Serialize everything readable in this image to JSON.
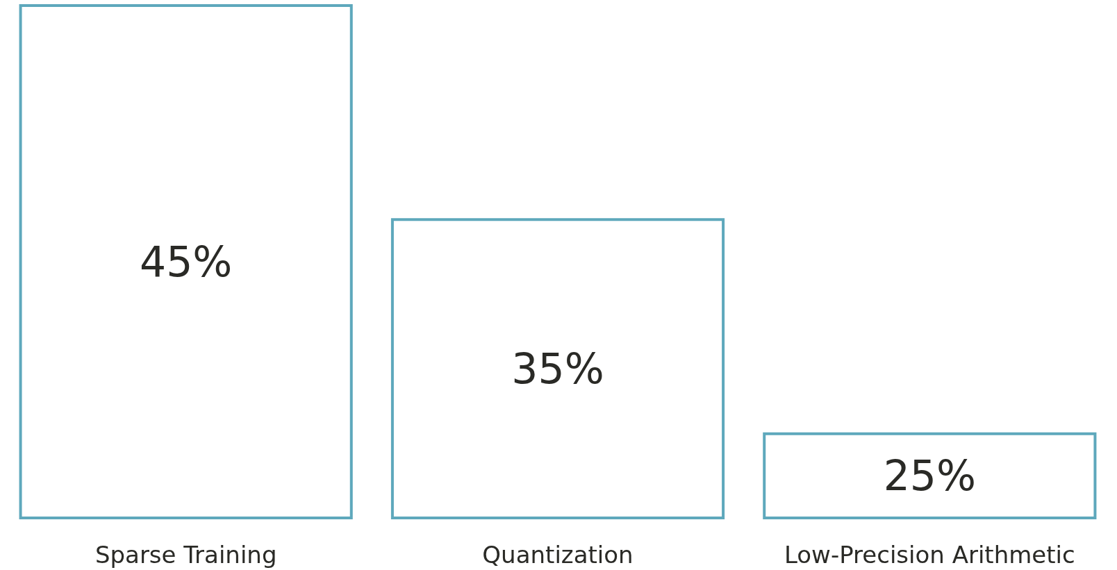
{
  "chart_data": {
    "type": "bar",
    "categories": [
      "Sparse Training",
      "Quantization",
      "Low-Precision Arithmetic"
    ],
    "values": [
      45,
      35,
      25
    ],
    "color": "#5ea8bc",
    "ylim": [
      21,
      45
    ],
    "tick_labels": "x",
    "data_labels": true,
    "value_labels": [
      "45%",
      "35%",
      "25%"
    ],
    "grid": false
  }
}
